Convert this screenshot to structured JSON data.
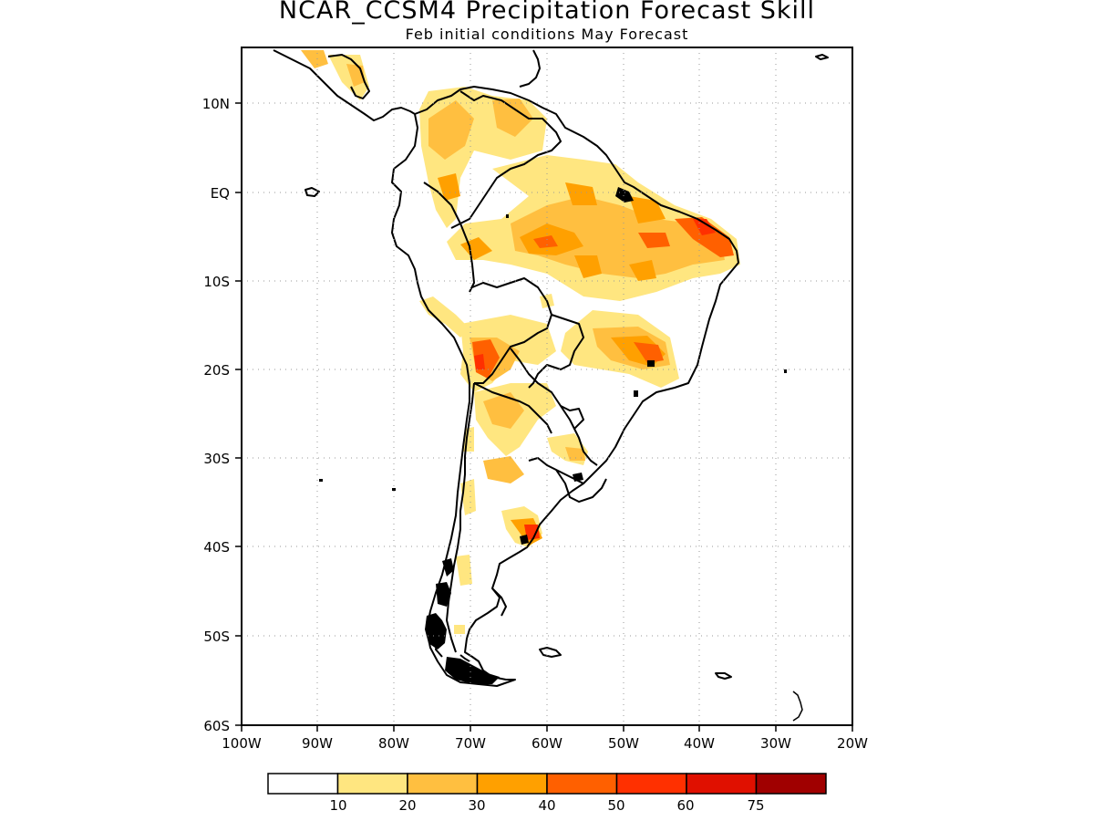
{
  "title": "NCAR_CCSM4 Precipitation Forecast Skill",
  "subtitle": "Feb initial conditions   May Forecast",
  "y_ticks": [
    "10N",
    "EQ",
    "10S",
    "20S",
    "30S",
    "40S",
    "50S",
    "60S"
  ],
  "x_ticks": [
    "100W",
    "90W",
    "80W",
    "70W",
    "60W",
    "50W",
    "40W",
    "30W",
    "20W"
  ],
  "colorbar": {
    "labels": [
      "10",
      "20",
      "30",
      "40",
      "50",
      "60",
      "75"
    ],
    "colors": [
      "#ffffff",
      "#ffe680",
      "#ffbf40",
      "#ffa000",
      "#ff6000",
      "#ff3000",
      "#e01000",
      "#a00000"
    ]
  }
}
